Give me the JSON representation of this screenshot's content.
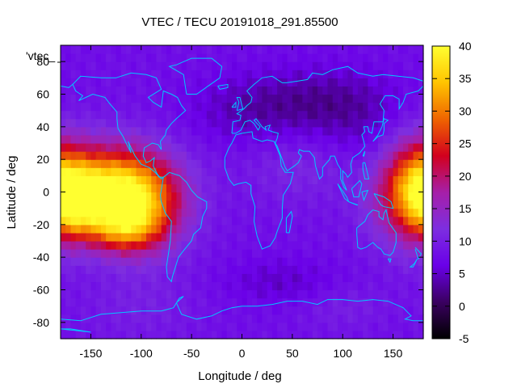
{
  "chart_data": {
    "type": "heatmap",
    "title": "VTEC / TECU 20191018_291.85500",
    "xlabel": "Longitude / deg",
    "ylabel": "Latitude / deg",
    "xlim": [
      -180,
      180
    ],
    "ylim": [
      -90,
      90
    ],
    "x_ticks": [
      -150,
      -100,
      -50,
      0,
      50,
      100,
      150
    ],
    "y_ticks": [
      80,
      60,
      40,
      20,
      0,
      -20,
      -40,
      -60,
      -80
    ],
    "colorbar": {
      "range": [
        -5,
        40
      ],
      "ticks": [
        40,
        35,
        30,
        25,
        20,
        15,
        10,
        5,
        0,
        -5
      ],
      "stops": [
        "#000000",
        "#3a0060",
        "#6a00e8",
        "#7d2ee0",
        "#a61fa8",
        "#d2001e",
        "#ef6400",
        "#ffc400",
        "#ffff30"
      ]
    },
    "legend_entry": "'vtec_",
    "coastline_color": "#00c8ff",
    "background_level": 8,
    "enhancements": [
      {
        "lon": -140,
        "lat": 2,
        "amp": 26,
        "slon": 42,
        "slat": 18
      },
      {
        "lon": -100,
        "lat": -8,
        "amp": 16,
        "slon": 30,
        "slat": 20
      },
      {
        "lon": -120,
        "lat": -22,
        "amp": 12,
        "slon": 25,
        "slat": 10
      },
      {
        "lon": -165,
        "lat": -8,
        "amp": 10,
        "slon": 15,
        "slat": 12
      },
      {
        "lon": 175,
        "lat": 2,
        "amp": 16,
        "slon": 22,
        "slat": 22
      },
      {
        "lon": 150,
        "lat": -5,
        "amp": 4,
        "slon": 25,
        "slat": 20
      },
      {
        "lon": 60,
        "lat": 15,
        "amp": 3,
        "slon": 40,
        "slat": 15
      },
      {
        "lon": 100,
        "lat": -70,
        "amp": 2,
        "slon": 30,
        "slat": 10
      },
      {
        "lon": -100,
        "lat": -70,
        "amp": 2,
        "slon": 40,
        "slat": 15
      },
      {
        "lon": 80,
        "lat": 55,
        "amp": -5,
        "slon": 50,
        "slat": 15
      },
      {
        "lon": 0,
        "lat": 50,
        "amp": -3,
        "slon": 40,
        "slat": 15
      },
      {
        "lon": 40,
        "lat": -55,
        "amp": -3,
        "slon": 40,
        "slat": 10
      },
      {
        "lon": 120,
        "lat": 30,
        "amp": -2,
        "slon": 30,
        "slat": 20
      }
    ]
  }
}
